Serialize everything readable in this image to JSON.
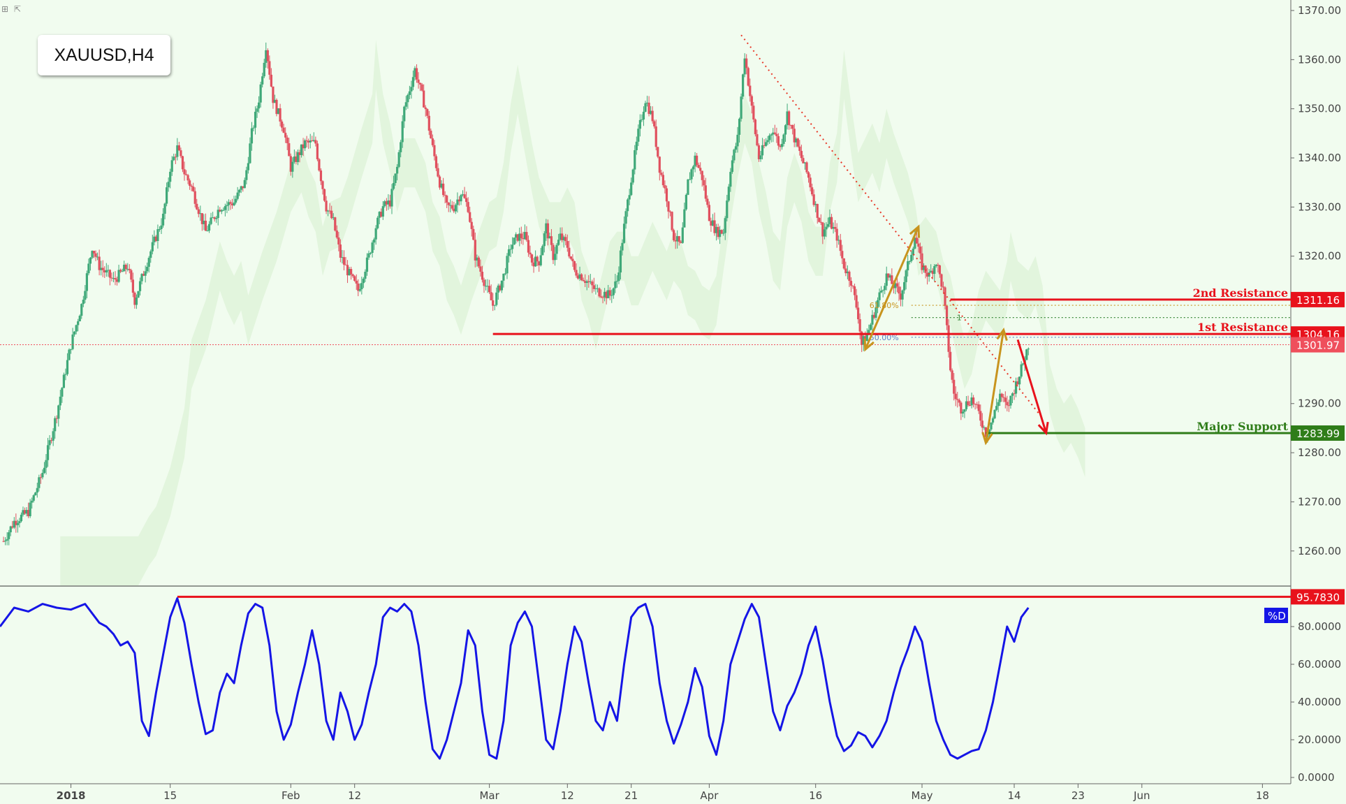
{
  "window": {
    "corner_icons": [
      "expand-icon",
      "collapse-icon"
    ]
  },
  "symbol": "XAUUSD,H4",
  "colors": {
    "background": "#f1fcef",
    "bull": "#3fa878",
    "bear": "#e0505e",
    "resistance": "#e8121c",
    "support": "#2f7d19",
    "stoch": "#1515e6",
    "fib": "#c8941e",
    "trend": "#e83828"
  },
  "chart_data": [
    {
      "type": "candlestick",
      "title": "XAUUSD,H4",
      "ylim": [
        1253,
        1371
      ],
      "y_ticks": [
        "1370.00",
        "1360.00",
        "1350.00",
        "1340.00",
        "1330.00",
        "1320.00",
        "1290.00",
        "1280.00",
        "1270.00",
        "1260.00"
      ],
      "x_labels": [
        "2018",
        "15",
        "Feb",
        "12",
        "Mar",
        "12",
        "21",
        "Apr",
        "16",
        "May",
        "14",
        "23",
        "Jun",
        "18"
      ],
      "x_days": [
        0,
        14,
        31,
        40,
        59,
        70,
        79,
        90,
        105,
        120,
        133,
        142,
        151,
        168
      ],
      "x_range": [
        -10,
        172
      ],
      "close_path": [
        [
          -9.5,
          1262
        ],
        [
          -8,
          1266
        ],
        [
          -6,
          1268
        ],
        [
          -4,
          1276
        ],
        [
          -2,
          1288
        ],
        [
          0,
          1302
        ],
        [
          1.5,
          1310
        ],
        [
          3,
          1322
        ],
        [
          4,
          1318
        ],
        [
          6,
          1315
        ],
        [
          8,
          1318
        ],
        [
          9,
          1311
        ],
        [
          11,
          1320
        ],
        [
          13,
          1328
        ],
        [
          14,
          1338
        ],
        [
          15,
          1342
        ],
        [
          16,
          1337
        ],
        [
          17,
          1334
        ],
        [
          19,
          1325
        ],
        [
          21,
          1330
        ],
        [
          23,
          1331
        ],
        [
          24.5,
          1335
        ],
        [
          25.5,
          1345
        ],
        [
          26.5,
          1352
        ],
        [
          27.5,
          1363
        ],
        [
          28.5,
          1352
        ],
        [
          30,
          1346
        ],
        [
          31,
          1338
        ],
        [
          33,
          1343
        ],
        [
          34.5,
          1343
        ],
        [
          35,
          1338
        ],
        [
          36,
          1330
        ],
        [
          37,
          1327
        ],
        [
          38,
          1320
        ],
        [
          39,
          1317
        ],
        [
          40.5,
          1313
        ],
        [
          42,
          1320
        ],
        [
          43,
          1326
        ],
        [
          44,
          1330
        ],
        [
          45,
          1331
        ],
        [
          46,
          1338
        ],
        [
          47,
          1350
        ],
        [
          48.5,
          1358
        ],
        [
          50,
          1350
        ],
        [
          51,
          1342
        ],
        [
          52,
          1335
        ],
        [
          53,
          1330
        ],
        [
          54,
          1330
        ],
        [
          55,
          1333
        ],
        [
          56,
          1330
        ],
        [
          57,
          1320
        ],
        [
          58,
          1316
        ],
        [
          59.5,
          1310
        ],
        [
          61,
          1316
        ],
        [
          62,
          1322
        ],
        [
          63,
          1324
        ],
        [
          64,
          1324
        ],
        [
          65,
          1319
        ],
        [
          66,
          1319
        ],
        [
          67,
          1326
        ],
        [
          68,
          1320
        ],
        [
          69,
          1324
        ],
        [
          70,
          1322
        ],
        [
          71,
          1317
        ],
        [
          72,
          1316
        ],
        [
          74,
          1313
        ],
        [
          76,
          1312
        ],
        [
          77,
          1315
        ],
        [
          78,
          1326
        ],
        [
          79,
          1336
        ],
        [
          80,
          1345
        ],
        [
          81,
          1352
        ],
        [
          82,
          1348
        ],
        [
          83,
          1338
        ],
        [
          84,
          1332
        ],
        [
          85,
          1324
        ],
        [
          86,
          1322
        ],
        [
          87,
          1335
        ],
        [
          88,
          1340
        ],
        [
          89,
          1336
        ],
        [
          90,
          1328
        ],
        [
          91,
          1325
        ],
        [
          92,
          1325
        ],
        [
          93,
          1338
        ],
        [
          94,
          1344
        ],
        [
          95,
          1361
        ],
        [
          96,
          1350
        ],
        [
          97,
          1340
        ],
        [
          98,
          1343
        ],
        [
          99,
          1346
        ],
        [
          100,
          1342
        ],
        [
          101,
          1349
        ],
        [
          102,
          1344
        ],
        [
          103,
          1340
        ],
        [
          104,
          1336
        ],
        [
          105,
          1330
        ],
        [
          106,
          1325
        ],
        [
          107,
          1327
        ],
        [
          108,
          1324
        ],
        [
          109,
          1318
        ],
        [
          110,
          1315
        ],
        [
          111,
          1308
        ],
        [
          111.5,
          1302
        ],
        [
          112.5,
          1305
        ],
        [
          114,
          1312
        ],
        [
          115,
          1316
        ],
        [
          116,
          1314
        ],
        [
          117,
          1312
        ],
        [
          118,
          1318
        ],
        [
          119,
          1324
        ],
        [
          120,
          1318
        ],
        [
          121,
          1316
        ],
        [
          122,
          1319
        ],
        [
          123,
          1313
        ],
        [
          124,
          1297
        ],
        [
          124.5,
          1292
        ],
        [
          125.5,
          1289
        ],
        [
          127,
          1291
        ],
        [
          128,
          1288
        ],
        [
          129,
          1284
        ],
        [
          130,
          1287
        ],
        [
          131,
          1292
        ],
        [
          132,
          1289
        ],
        [
          133,
          1293
        ],
        [
          134,
          1297
        ],
        [
          135,
          1302
        ]
      ],
      "stoch_D": {
        "ylim": [
          0,
          100
        ],
        "y_ticks": [
          "80.0000",
          "60.0000",
          "40.0000",
          "20.0000",
          "0.0000"
        ],
        "level": 95.783,
        "level_label": "95.7830",
        "legend": "%D",
        "path": [
          [
            -10,
            80
          ],
          [
            -8,
            90
          ],
          [
            -6,
            88
          ],
          [
            -4,
            92
          ],
          [
            -2,
            90
          ],
          [
            0,
            89
          ],
          [
            2,
            92
          ],
          [
            4,
            82
          ],
          [
            5,
            80
          ],
          [
            6,
            76
          ],
          [
            7,
            70
          ],
          [
            8,
            72
          ],
          [
            9,
            66
          ],
          [
            10,
            30
          ],
          [
            11,
            22
          ],
          [
            12,
            45
          ],
          [
            13,
            65
          ],
          [
            14,
            85
          ],
          [
            15,
            95
          ],
          [
            16,
            82
          ],
          [
            17,
            60
          ],
          [
            18,
            40
          ],
          [
            19,
            23
          ],
          [
            20,
            25
          ],
          [
            21,
            45
          ],
          [
            22,
            55
          ],
          [
            23,
            50
          ],
          [
            24,
            70
          ],
          [
            25,
            87
          ],
          [
            26,
            92
          ],
          [
            27,
            90
          ],
          [
            28,
            70
          ],
          [
            29,
            35
          ],
          [
            30,
            20
          ],
          [
            31,
            28
          ],
          [
            32,
            45
          ],
          [
            33,
            60
          ],
          [
            34,
            78
          ],
          [
            35,
            60
          ],
          [
            36,
            30
          ],
          [
            37,
            20
          ],
          [
            38,
            45
          ],
          [
            39,
            35
          ],
          [
            40,
            20
          ],
          [
            41,
            28
          ],
          [
            42,
            45
          ],
          [
            43,
            60
          ],
          [
            44,
            85
          ],
          [
            45,
            90
          ],
          [
            46,
            88
          ],
          [
            47,
            92
          ],
          [
            48,
            88
          ],
          [
            49,
            70
          ],
          [
            50,
            40
          ],
          [
            51,
            15
          ],
          [
            52,
            10
          ],
          [
            53,
            20
          ],
          [
            54,
            35
          ],
          [
            55,
            50
          ],
          [
            56,
            78
          ],
          [
            57,
            70
          ],
          [
            58,
            35
          ],
          [
            59,
            12
          ],
          [
            60,
            10
          ],
          [
            61,
            30
          ],
          [
            62,
            70
          ],
          [
            63,
            82
          ],
          [
            64,
            88
          ],
          [
            65,
            80
          ],
          [
            66,
            50
          ],
          [
            67,
            20
          ],
          [
            68,
            15
          ],
          [
            69,
            35
          ],
          [
            70,
            60
          ],
          [
            71,
            80
          ],
          [
            72,
            72
          ],
          [
            73,
            50
          ],
          [
            74,
            30
          ],
          [
            75,
            25
          ],
          [
            76,
            40
          ],
          [
            77,
            30
          ],
          [
            78,
            60
          ],
          [
            79,
            85
          ],
          [
            80,
            90
          ],
          [
            81,
            92
          ],
          [
            82,
            80
          ],
          [
            83,
            50
          ],
          [
            84,
            30
          ],
          [
            85,
            18
          ],
          [
            86,
            28
          ],
          [
            87,
            40
          ],
          [
            88,
            58
          ],
          [
            89,
            48
          ],
          [
            90,
            22
          ],
          [
            91,
            12
          ],
          [
            92,
            30
          ],
          [
            93,
            60
          ],
          [
            94,
            72
          ],
          [
            95,
            84
          ],
          [
            96,
            92
          ],
          [
            97,
            85
          ],
          [
            98,
            60
          ],
          [
            99,
            35
          ],
          [
            100,
            25
          ],
          [
            101,
            38
          ],
          [
            102,
            45
          ],
          [
            103,
            55
          ],
          [
            104,
            70
          ],
          [
            105,
            80
          ],
          [
            106,
            62
          ],
          [
            107,
            40
          ],
          [
            108,
            22
          ],
          [
            109,
            14
          ],
          [
            110,
            17
          ],
          [
            111,
            24
          ],
          [
            112,
            22
          ],
          [
            113,
            16
          ],
          [
            114,
            22
          ],
          [
            115,
            30
          ],
          [
            116,
            45
          ],
          [
            117,
            58
          ],
          [
            118,
            68
          ],
          [
            119,
            80
          ],
          [
            120,
            72
          ],
          [
            121,
            50
          ],
          [
            122,
            30
          ],
          [
            123,
            20
          ],
          [
            124,
            12
          ],
          [
            125,
            10
          ],
          [
            126,
            12
          ],
          [
            127,
            14
          ],
          [
            128,
            15
          ],
          [
            129,
            25
          ],
          [
            130,
            40
          ],
          [
            131,
            60
          ],
          [
            132,
            80
          ],
          [
            133,
            72
          ],
          [
            134,
            85
          ],
          [
            135,
            90
          ]
        ]
      },
      "levels": [
        {
          "name": "2nd Resistance",
          "value": 1311.16,
          "label": "1311.16",
          "color": "#e8121c",
          "x_from": 124
        },
        {
          "name": "1st Resistance",
          "value": 1304.16,
          "label": "1304.16",
          "color": "#e8121c",
          "x_from": 59.5
        },
        {
          "name": "current",
          "value": 1301.97,
          "label": "1301.97",
          "color": "#ef4f5c"
        },
        {
          "name": "Major Support",
          "value": 1283.99,
          "label": "1283.99",
          "color": "#2f7d19",
          "x_from": 129
        }
      ],
      "trendline": {
        "from": [
          94.5,
          1365
        ],
        "to": [
          137,
          1287
        ]
      },
      "fib": {
        "labels": [
          "61.80%",
          "1",
          "50.00%"
        ],
        "values": [
          1310,
          1307.5,
          1303.5
        ],
        "x_from": 118.5
      },
      "arrows": [
        {
          "type": "double",
          "color": "#c8941e",
          "from": [
            112,
            1301
          ],
          "to": [
            119.5,
            1326
          ]
        },
        {
          "type": "double",
          "color": "#c8941e",
          "from": [
            129,
            1282
          ],
          "to": [
            131.5,
            1305
          ]
        },
        {
          "type": "single",
          "color": "#e8121c",
          "from": [
            133.5,
            1303
          ],
          "to": [
            137.5,
            1284
          ]
        }
      ]
    }
  ]
}
